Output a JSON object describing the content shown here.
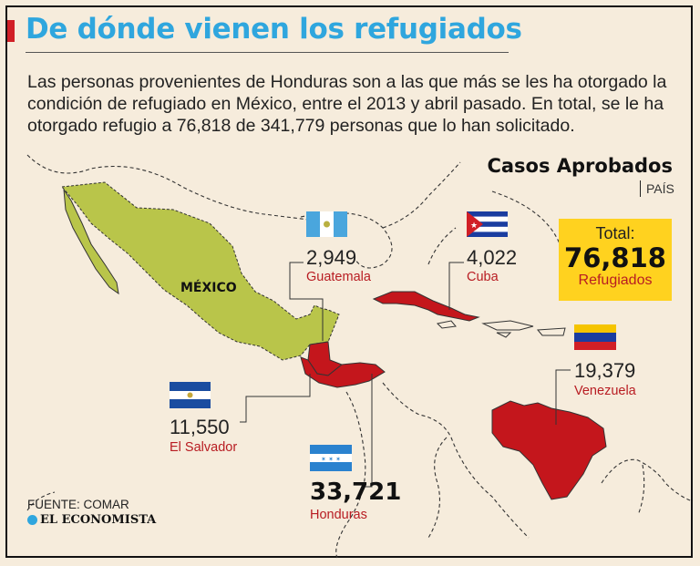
{
  "header": {
    "title": "De dónde vienen los refugiados",
    "intro": "Las personas provenientes de Honduras son a las que más se les ha otorgado la condición de refugiado en México, entre el 2013 y abril pasado. En total, se le ha otorgado refugio a 76,818 de 341,779 personas que lo han solicitado."
  },
  "legend": {
    "title": "Casos Aprobados",
    "subtitle": "PAÍS"
  },
  "total": {
    "label": "Total:",
    "value": "76,818",
    "unit": "Refugiados"
  },
  "map_label": "MÉXICO",
  "countries": [
    {
      "name": "Guatemala",
      "value": "2,949",
      "flag": "guatemala-flag"
    },
    {
      "name": "Cuba",
      "value": "4,022",
      "flag": "cuba-flag"
    },
    {
      "name": "Venezuela",
      "value": "19,379",
      "flag": "venezuela-flag"
    },
    {
      "name": "El Salvador",
      "value": "11,550",
      "flag": "el-salvador-flag"
    },
    {
      "name": "Honduras",
      "value": "33,721",
      "flag": "honduras-flag"
    }
  ],
  "colors": {
    "background": "#f6ecdc",
    "title": "#2fa6de",
    "highlight_country": "#c4161c",
    "mexico": "#b9c54a",
    "total_box": "#ffd21f",
    "label_red": "#b81c22"
  },
  "footer": {
    "source": "FUENTE: COMAR",
    "brand": "EL ECONOMISTA"
  }
}
